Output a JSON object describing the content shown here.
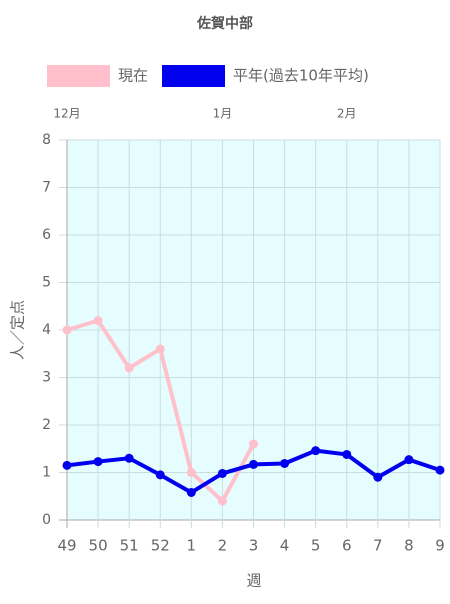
{
  "chart_data": {
    "type": "line",
    "title": "佐賀中部",
    "categories": [
      "49",
      "50",
      "51",
      "52",
      "1",
      "2",
      "3",
      "4",
      "5",
      "6",
      "7",
      "8",
      "9"
    ],
    "top_labels": [
      "12月",
      null,
      null,
      null,
      null,
      "1月",
      null,
      null,
      null,
      "2月",
      null,
      null,
      null
    ],
    "series": [
      {
        "name": "現在",
        "color": "#ffc0cb",
        "values": [
          4.0,
          4.2,
          3.2,
          3.6,
          1.0,
          0.4,
          1.6,
          null,
          null,
          null,
          null,
          null,
          null
        ]
      },
      {
        "name": "平年(過去10年平均)",
        "color": "#0000ee",
        "values": [
          1.15,
          1.23,
          1.3,
          0.95,
          0.58,
          0.98,
          1.17,
          1.19,
          1.46,
          1.38,
          0.9,
          1.27,
          1.05
        ]
      }
    ],
    "ylim": [
      0,
      8
    ],
    "yticks": [
      0,
      1,
      2,
      3,
      4,
      5,
      6,
      7,
      8
    ],
    "y_label": "人／定点",
    "x_label": "週",
    "grid": true,
    "background": "#e6fdff"
  }
}
